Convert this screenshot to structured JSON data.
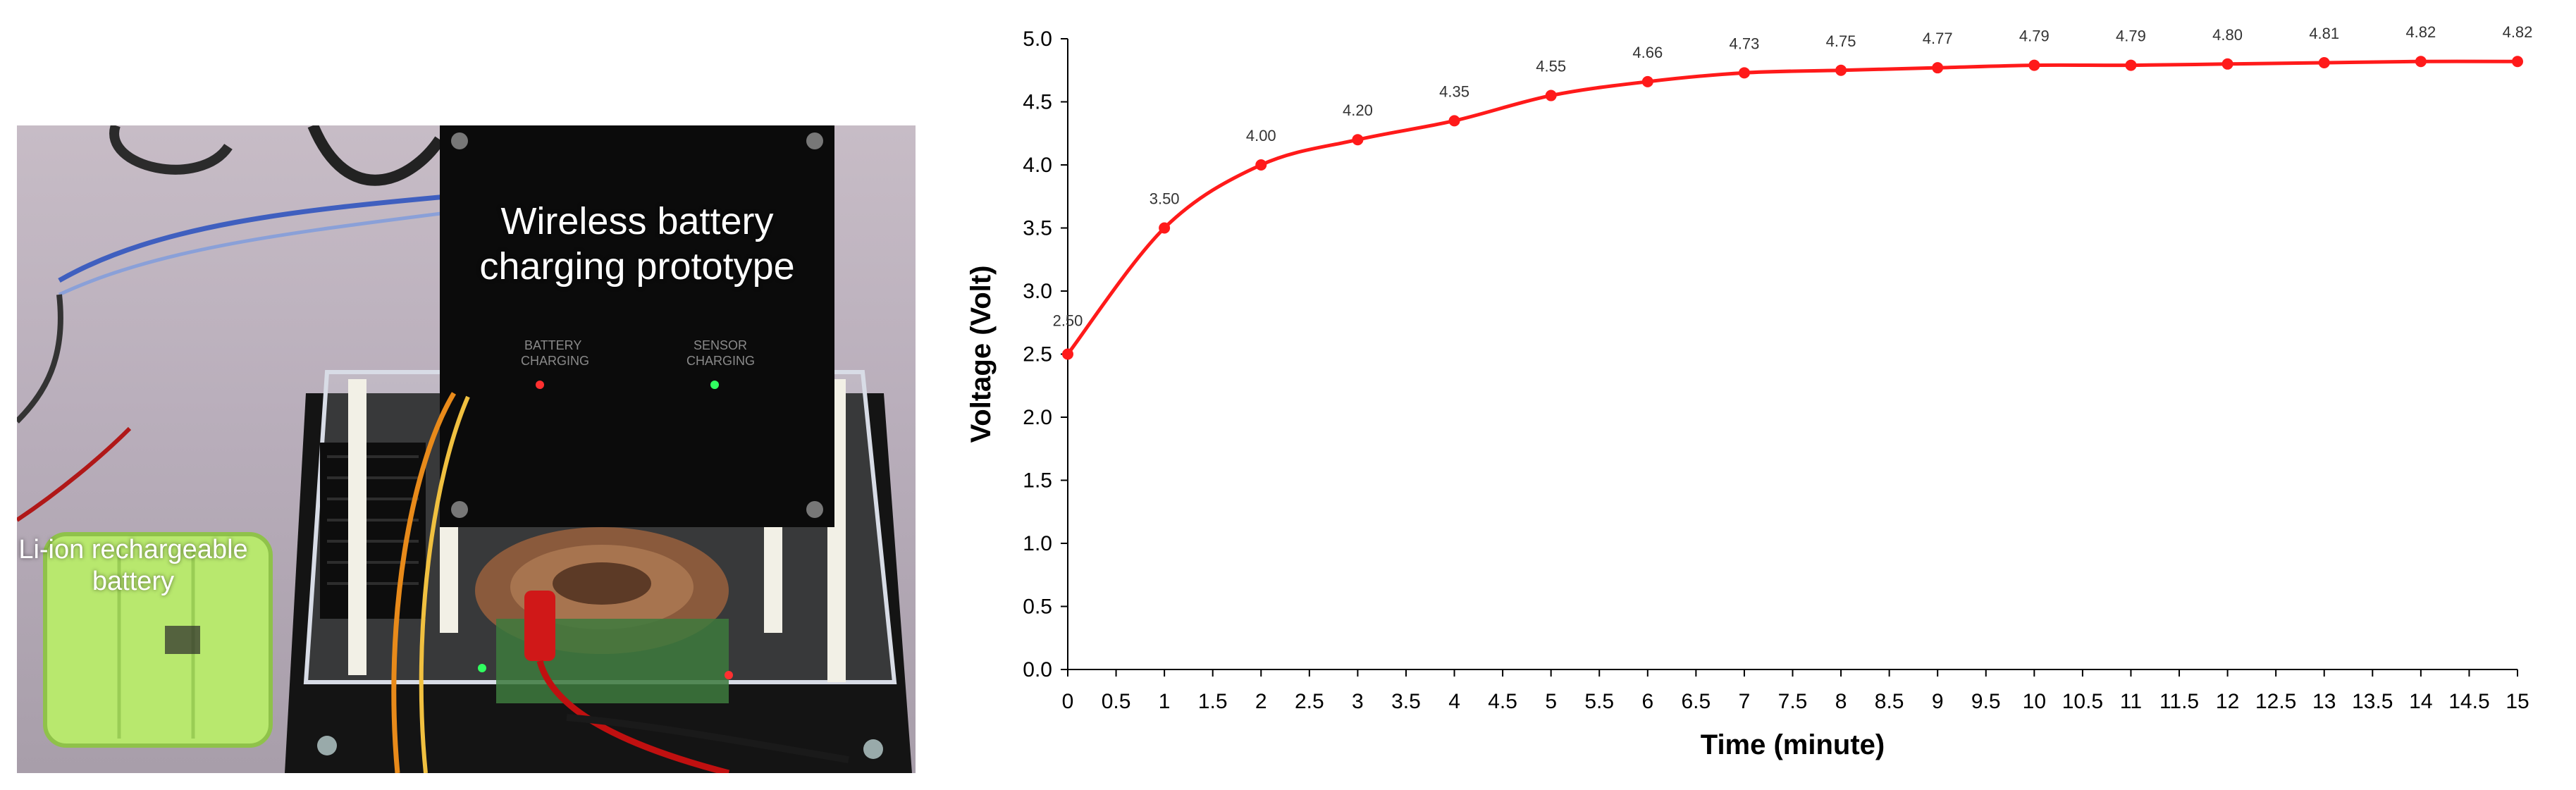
{
  "photo": {
    "prototype_caption": "Wireless battery charging prototype",
    "battery_caption": "Li-ion rechargeable battery"
  },
  "chart_data": {
    "type": "line",
    "title": "",
    "xlabel": "Time (minute)",
    "ylabel": "Voltage (Volt)",
    "xlim": [
      0,
      15
    ],
    "ylim": [
      0,
      5
    ],
    "x_ticks": [
      "0",
      "0.5",
      "1",
      "1.5",
      "2",
      "2.5",
      "3",
      "3.5",
      "4",
      "4.5",
      "5",
      "5.5",
      "6",
      "6.5",
      "7",
      "7.5",
      "8",
      "8.5",
      "9",
      "9.5",
      "10",
      "10.5",
      "11",
      "11.5",
      "12",
      "12.5",
      "13",
      "13.5",
      "14",
      "14.5",
      "15"
    ],
    "y_ticks": [
      "0.0",
      "0.5",
      "1.0",
      "1.5",
      "2.0",
      "2.5",
      "3.0",
      "3.5",
      "4.0",
      "4.5",
      "5.0"
    ],
    "grid": false,
    "legend": "none",
    "color": "#ff1a1a",
    "series": [
      {
        "x": [
          0,
          1,
          2,
          3,
          4,
          5,
          6,
          7,
          8,
          9,
          10,
          11,
          12,
          13,
          14,
          15
        ],
        "values": [
          2.5,
          3.5,
          4.0,
          4.2,
          4.35,
          4.55,
          4.66,
          4.73,
          4.75,
          4.77,
          4.79,
          4.79,
          4.8,
          4.81,
          4.82,
          4.82
        ],
        "labels": [
          "2.50",
          "3.50",
          "4.00",
          "4.20",
          "4.35",
          "4.55",
          "4.66",
          "4.73",
          "4.75",
          "4.77",
          "4.79",
          "4.79",
          "4.80",
          "4.81",
          "4.82",
          "4.82"
        ]
      }
    ]
  }
}
